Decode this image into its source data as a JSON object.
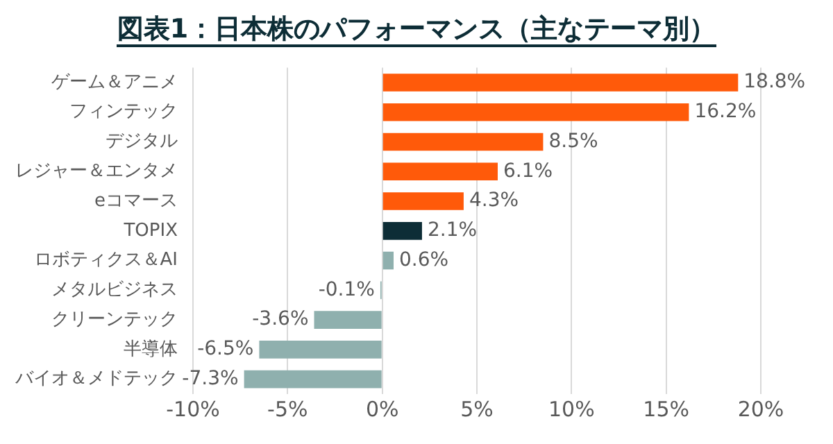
{
  "chart_data": {
    "type": "bar",
    "orientation": "horizontal",
    "title": "図表1：日本株のパフォーマンス（主なテーマ別）",
    "categories": [
      "ゲーム＆アニメ",
      "フィンテック",
      "デジタル",
      "レジャー＆エンタメ",
      "eコマース",
      "TOPIX",
      "ロボティクス＆AI",
      "メタルビジネス",
      "クリーンテック",
      "半導体",
      "バイオ＆メドテック"
    ],
    "values": [
      18.8,
      16.2,
      8.5,
      6.1,
      4.3,
      2.1,
      0.6,
      -0.1,
      -3.6,
      -6.5,
      -7.3
    ],
    "colors": [
      "#ff5a0a",
      "#ff5a0a",
      "#ff5a0a",
      "#ff5a0a",
      "#ff5a0a",
      "#0d2d36",
      "#8fb0ae",
      "#8fb0ae",
      "#8fb0ae",
      "#8fb0ae",
      "#8fb0ae"
    ],
    "value_labels": [
      "18.8%",
      "16.2%",
      "8.5%",
      "6.1%",
      "4.3%",
      "2.1%",
      "0.6%",
      "-0.1%",
      "-3.6%",
      "-6.5%",
      "-7.3%"
    ],
    "xlim": [
      -10,
      20
    ],
    "xticks": [
      {
        "value": -10,
        "label": "-10%"
      },
      {
        "value": -5,
        "label": "-5%"
      },
      {
        "value": 0,
        "label": "0%"
      },
      {
        "value": 5,
        "label": "5%"
      },
      {
        "value": 10,
        "label": "10%"
      },
      {
        "value": 15,
        "label": "15%"
      },
      {
        "value": 20,
        "label": "20%"
      }
    ],
    "grid": "x",
    "legend": false
  }
}
